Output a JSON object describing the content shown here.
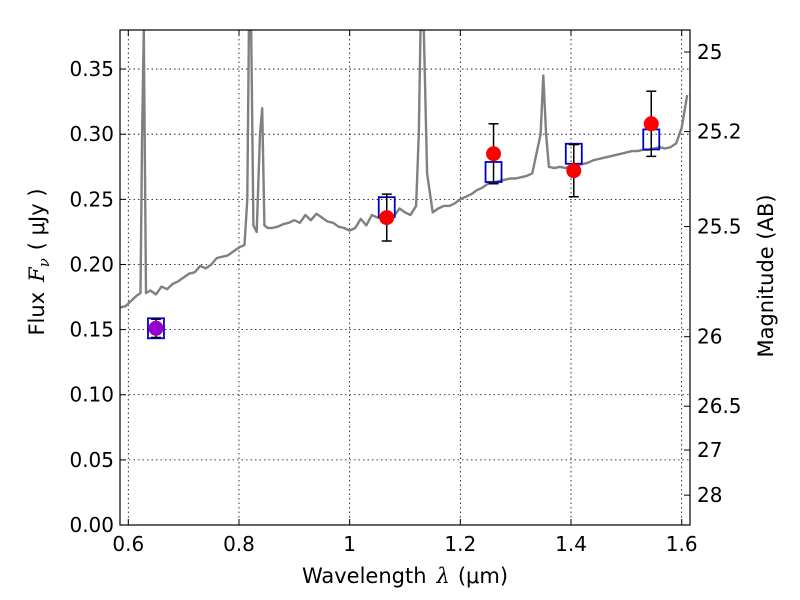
{
  "chart_data": {
    "type": "scatter",
    "xlabel_prefix": "Wavelength",
    "xlabel_lambda": "λ",
    "xlabel_unit": "(μm)",
    "ylabel_left_prefix": "Flux",
    "ylabel_left_symbol": "F",
    "ylabel_left_sub": "ν",
    "ylabel_left_unit": "( μJy )",
    "ylabel_right": "Magnitude (AB)",
    "xlim": [
      0.585,
      1.615
    ],
    "ylim": [
      0.0,
      0.38
    ],
    "grid": true,
    "x_ticks": [
      {
        "value": 0.6,
        "label": "0.6"
      },
      {
        "value": 0.8,
        "label": "0.8"
      },
      {
        "value": 1.0,
        "label": "1"
      },
      {
        "value": 1.2,
        "label": "1.2"
      },
      {
        "value": 1.4,
        "label": "1.4"
      },
      {
        "value": 1.6,
        "label": "1.6"
      }
    ],
    "y_ticks": [
      {
        "value": 0.0,
        "label": "0.00"
      },
      {
        "value": 0.05,
        "label": "0.05"
      },
      {
        "value": 0.1,
        "label": "0.10"
      },
      {
        "value": 0.15,
        "label": "0.15"
      },
      {
        "value": 0.2,
        "label": "0.20"
      },
      {
        "value": 0.25,
        "label": "0.25"
      },
      {
        "value": 0.3,
        "label": "0.30"
      },
      {
        "value": 0.35,
        "label": "0.35"
      }
    ],
    "right_ticks": [
      {
        "mag": 25,
        "label": "25"
      },
      {
        "mag": 25.2,
        "label": "25.2"
      },
      {
        "mag": 25.5,
        "label": "25.5"
      },
      {
        "mag": 26,
        "label": "26"
      },
      {
        "mag": 26.5,
        "label": "26.5"
      },
      {
        "mag": 27,
        "label": "27"
      },
      {
        "mag": 28,
        "label": "28"
      }
    ],
    "model_spectrum": {
      "color": "#808080",
      "points": [
        [
          0.585,
          0.167
        ],
        [
          0.595,
          0.168
        ],
        [
          0.605,
          0.172
        ],
        [
          0.615,
          0.176
        ],
        [
          0.622,
          0.178
        ],
        [
          0.625,
          0.3
        ],
        [
          0.628,
          0.38
        ],
        [
          0.632,
          0.178
        ],
        [
          0.64,
          0.18
        ],
        [
          0.65,
          0.177
        ],
        [
          0.66,
          0.183
        ],
        [
          0.67,
          0.181
        ],
        [
          0.68,
          0.185
        ],
        [
          0.69,
          0.187
        ],
        [
          0.7,
          0.19
        ],
        [
          0.71,
          0.193
        ],
        [
          0.72,
          0.194
        ],
        [
          0.73,
          0.199
        ],
        [
          0.74,
          0.197
        ],
        [
          0.75,
          0.2
        ],
        [
          0.76,
          0.205
        ],
        [
          0.77,
          0.206
        ],
        [
          0.78,
          0.207
        ],
        [
          0.79,
          0.21
        ],
        [
          0.8,
          0.213
        ],
        [
          0.81,
          0.215
        ],
        [
          0.815,
          0.25
        ],
        [
          0.818,
          0.38
        ],
        [
          0.822,
          0.38
        ],
        [
          0.826,
          0.23
        ],
        [
          0.832,
          0.225
        ],
        [
          0.838,
          0.3
        ],
        [
          0.842,
          0.32
        ],
        [
          0.846,
          0.23
        ],
        [
          0.852,
          0.228
        ],
        [
          0.86,
          0.228
        ],
        [
          0.87,
          0.229
        ],
        [
          0.88,
          0.231
        ],
        [
          0.89,
          0.232
        ],
        [
          0.9,
          0.234
        ],
        [
          0.91,
          0.232
        ],
        [
          0.92,
          0.238
        ],
        [
          0.93,
          0.234
        ],
        [
          0.94,
          0.239
        ],
        [
          0.95,
          0.236
        ],
        [
          0.96,
          0.233
        ],
        [
          0.97,
          0.232
        ],
        [
          0.98,
          0.229
        ],
        [
          0.99,
          0.228
        ],
        [
          1.0,
          0.226
        ],
        [
          1.01,
          0.228
        ],
        [
          1.02,
          0.235
        ],
        [
          1.03,
          0.23
        ],
        [
          1.04,
          0.238
        ],
        [
          1.05,
          0.236
        ],
        [
          1.06,
          0.235
        ],
        [
          1.07,
          0.24
        ],
        [
          1.08,
          0.237
        ],
        [
          1.09,
          0.243
        ],
        [
          1.1,
          0.24
        ],
        [
          1.11,
          0.238
        ],
        [
          1.12,
          0.245
        ],
        [
          1.125,
          0.3
        ],
        [
          1.128,
          0.38
        ],
        [
          1.134,
          0.38
        ],
        [
          1.14,
          0.27
        ],
        [
          1.15,
          0.24
        ],
        [
          1.16,
          0.243
        ],
        [
          1.17,
          0.245
        ],
        [
          1.18,
          0.245
        ],
        [
          1.19,
          0.247
        ],
        [
          1.2,
          0.25
        ],
        [
          1.21,
          0.252
        ],
        [
          1.22,
          0.254
        ],
        [
          1.23,
          0.257
        ],
        [
          1.24,
          0.259
        ],
        [
          1.25,
          0.262
        ],
        [
          1.26,
          0.263
        ],
        [
          1.27,
          0.264
        ],
        [
          1.28,
          0.265
        ],
        [
          1.29,
          0.266
        ],
        [
          1.3,
          0.266
        ],
        [
          1.31,
          0.267
        ],
        [
          1.32,
          0.268
        ],
        [
          1.33,
          0.27
        ],
        [
          1.345,
          0.3
        ],
        [
          1.35,
          0.345
        ],
        [
          1.355,
          0.3
        ],
        [
          1.36,
          0.275
        ],
        [
          1.37,
          0.274
        ],
        [
          1.38,
          0.275
        ],
        [
          1.39,
          0.274
        ],
        [
          1.4,
          0.276
        ],
        [
          1.41,
          0.276
        ],
        [
          1.42,
          0.277
        ],
        [
          1.43,
          0.278
        ],
        [
          1.44,
          0.28
        ],
        [
          1.45,
          0.281
        ],
        [
          1.46,
          0.282
        ],
        [
          1.47,
          0.283
        ],
        [
          1.48,
          0.284
        ],
        [
          1.49,
          0.285
        ],
        [
          1.5,
          0.286
        ],
        [
          1.51,
          0.287
        ],
        [
          1.52,
          0.287
        ],
        [
          1.53,
          0.288
        ],
        [
          1.54,
          0.288
        ],
        [
          1.55,
          0.289
        ],
        [
          1.56,
          0.29
        ],
        [
          1.57,
          0.289
        ],
        [
          1.58,
          0.29
        ],
        [
          1.59,
          0.293
        ],
        [
          1.6,
          0.305
        ],
        [
          1.61,
          0.33
        ]
      ]
    },
    "measured": {
      "color": "#ff0000",
      "points": [
        {
          "x": 1.067,
          "y": 0.236,
          "yerr": 0.018
        },
        {
          "x": 1.26,
          "y": 0.285,
          "yerr": 0.023
        },
        {
          "x": 1.405,
          "y": 0.272,
          "yerr": 0.02
        },
        {
          "x": 1.545,
          "y": 0.308,
          "yerr": 0.025
        }
      ]
    },
    "purple_point": {
      "color": "#9900cc",
      "x": 0.65,
      "y": 0.151,
      "yerr": 0.007
    },
    "model_boxes": {
      "color": "#0000cc",
      "points": [
        {
          "x": 0.65,
          "y": 0.151
        },
        {
          "x": 1.067,
          "y": 0.244
        },
        {
          "x": 1.26,
          "y": 0.271
        },
        {
          "x": 1.405,
          "y": 0.285
        },
        {
          "x": 1.545,
          "y": 0.296
        }
      ]
    }
  }
}
